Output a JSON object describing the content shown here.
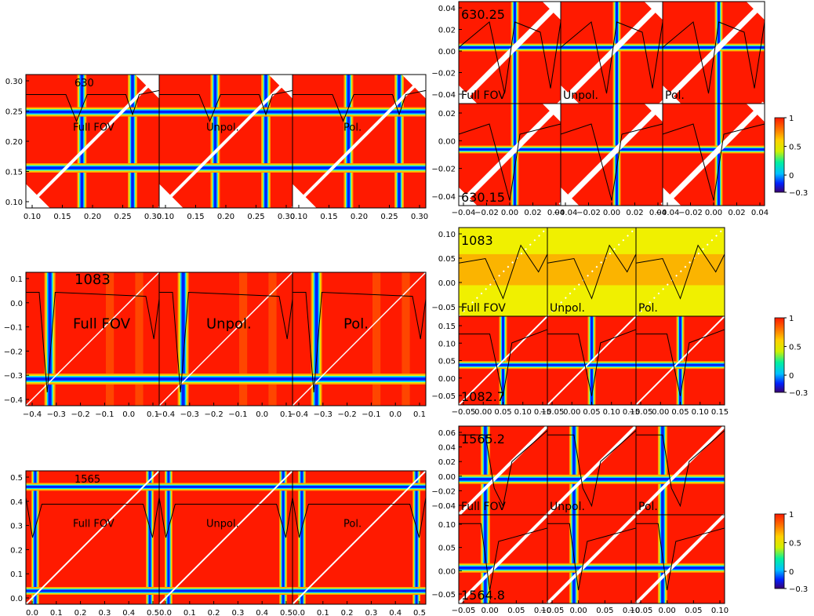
{
  "colors": {
    "red": "#ff1a00",
    "orange": "#ff9a00",
    "yellow": "#f0f000",
    "green": "#30e030",
    "cyan": "#00d8ff",
    "blue": "#0020ff",
    "navy": "#1a0080",
    "white": "#ffffff",
    "black": "#000000"
  },
  "chart_data": [
    {
      "type": "heatmap",
      "id": "g630",
      "panels": [
        "Full FOV",
        "Unpol.",
        "Pol."
      ],
      "wavelength_label": "630",
      "xticks": [
        "0.10",
        "0.15",
        "0.20",
        "0.25",
        "0.30"
      ],
      "yticks": [
        "0.30",
        "0.25",
        "0.20",
        "0.15",
        "0.10"
      ],
      "xlim": [
        0.07,
        0.34
      ],
      "ylim": [
        0.07,
        0.33
      ],
      "line_centers": [
        0.15,
        0.25
      ]
    },
    {
      "type": "heatmap",
      "id": "g1083",
      "panels": [
        "Full FOV",
        "Unpol.",
        "Pol."
      ],
      "wavelength_label": "1083",
      "xticks": [
        "−0.4",
        "−0.3",
        "−0.2",
        "−0.1",
        "0.0",
        "0.1"
      ],
      "yticks": [
        "0.1",
        "0.0",
        "−0.1",
        "−0.2",
        "−0.3",
        "−0.4"
      ],
      "xlim": [
        -0.42,
        0.19
      ],
      "ylim": [
        -0.42,
        0.19
      ],
      "line_centers": [
        -0.31
      ]
    },
    {
      "type": "heatmap",
      "id": "g1565",
      "panels": [
        "Full FOV",
        "Unpol.",
        "Pol."
      ],
      "wavelength_label": "1565",
      "xticks": [
        "0.0",
        "0.1",
        "0.2",
        "0.3",
        "0.4",
        "0.5"
      ],
      "yticks": [
        "0.5",
        "0.4",
        "0.3",
        "0.2",
        "0.1",
        "0.0"
      ],
      "xlim": [
        -0.06,
        0.51
      ],
      "ylim": [
        -0.06,
        0.51
      ],
      "line_centers": [
        -0.02,
        0.46
      ]
    },
    {
      "type": "heatmap",
      "id": "g63025",
      "panels": [
        "Full FOV",
        "Unpol.",
        "Pol."
      ],
      "top_label": "630.25",
      "bottom_label": "630.15",
      "xticks": [
        "−0.04",
        "−0.02",
        "0.00",
        "0.02",
        "0.04"
      ],
      "yticks_top": [
        "0.04",
        "0.02",
        "0.00",
        "−0.02",
        "−0.04"
      ],
      "yticks_bottom": [
        "0.02",
        "0.00",
        "−0.02",
        "−0.04"
      ],
      "xlim": [
        -0.045,
        0.045
      ],
      "colorbar": {
        "ticks": [
          "1",
          "0.5",
          "0",
          "−0.3"
        ],
        "range": [
          -0.3,
          1
        ]
      }
    },
    {
      "type": "heatmap",
      "id": "g10827",
      "panels": [
        "Full FOV",
        "Unpol.",
        "Pol."
      ],
      "top_label": "1083",
      "bottom_label": "1082.7",
      "xticks": [
        "−0.05",
        "0.00",
        "0.05",
        "0.10",
        "0.15"
      ],
      "yticks_top": [
        "0.10",
        "0.05",
        "0.00",
        "−0.05"
      ],
      "yticks_bottom": [
        "0.15",
        "0.10",
        "0.05",
        "0.00",
        "−0.05"
      ],
      "xlim": [
        -0.09,
        0.17
      ],
      "colorbar": {
        "ticks": [
          "1",
          "0.5",
          "0",
          "−0.3"
        ],
        "range": [
          -0.3,
          1
        ]
      }
    },
    {
      "type": "heatmap",
      "id": "g15652",
      "panels": [
        "Full FOV",
        "Unpol.",
        "Pol."
      ],
      "top_label": "1565.2",
      "bottom_label": "1564.8",
      "xticks": [
        "−0.05",
        "0.00",
        "0.05",
        "0.10"
      ],
      "yticks_top": [
        "0.06",
        "0.04",
        "0.02",
        "0.00",
        "−0.02",
        "−0.04"
      ],
      "yticks_bottom": [
        "0.10",
        "0.05",
        "0.00",
        "−0.05"
      ],
      "xlim": [
        -0.065,
        0.135
      ],
      "colorbar": {
        "ticks": [
          "1",
          "0.5",
          "0",
          "−0.3"
        ],
        "range": [
          -0.3,
          1
        ]
      }
    }
  ]
}
